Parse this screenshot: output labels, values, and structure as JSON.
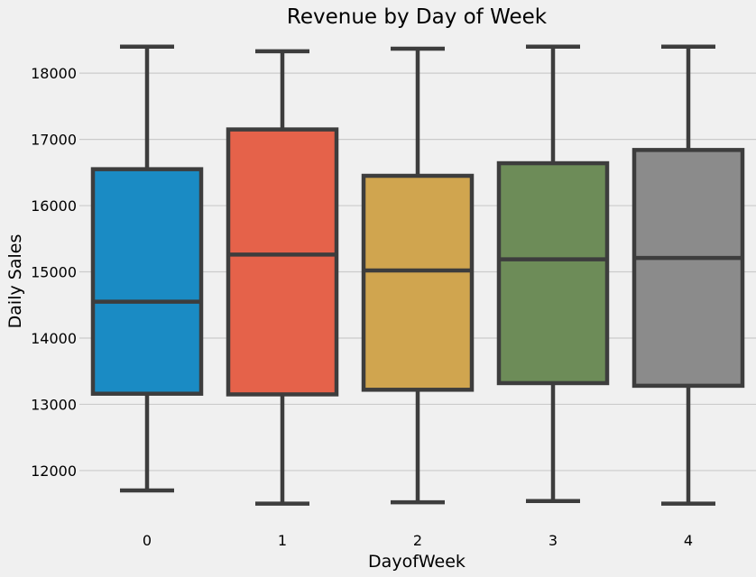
{
  "chart_data": {
    "type": "box",
    "title": "Revenue by Day of Week",
    "xlabel": "DayofWeek",
    "ylabel": "Daily Sales",
    "categories": [
      "0",
      "1",
      "2",
      "3",
      "4"
    ],
    "boxes": [
      {
        "category": "0",
        "whisker_low": 11700,
        "q1": 13160,
        "median": 14550,
        "q3": 16550,
        "whisker_high": 18400,
        "color": "#1a8bc4"
      },
      {
        "category": "1",
        "whisker_low": 11500,
        "q1": 13150,
        "median": 15260,
        "q3": 17150,
        "whisker_high": 18330,
        "color": "#e5624a"
      },
      {
        "category": "2",
        "whisker_low": 11520,
        "q1": 13220,
        "median": 15020,
        "q3": 16450,
        "whisker_high": 18370,
        "color": "#d0a54f"
      },
      {
        "category": "3",
        "whisker_low": 11540,
        "q1": 13320,
        "median": 15190,
        "q3": 16640,
        "whisker_high": 18400,
        "color": "#6d8c58"
      },
      {
        "category": "4",
        "whisker_low": 11500,
        "q1": 13280,
        "median": 15210,
        "q3": 16840,
        "whisker_high": 18400,
        "color": "#8b8b8b"
      }
    ],
    "yticks": [
      12000,
      13000,
      14000,
      15000,
      16000,
      17000,
      18000
    ],
    "ylim": [
      11400,
      18560
    ],
    "grid": true,
    "colors": {
      "background": "#f0f0f0",
      "grid": "#cbcbcb",
      "box_edge": "#3d3d3d"
    }
  }
}
